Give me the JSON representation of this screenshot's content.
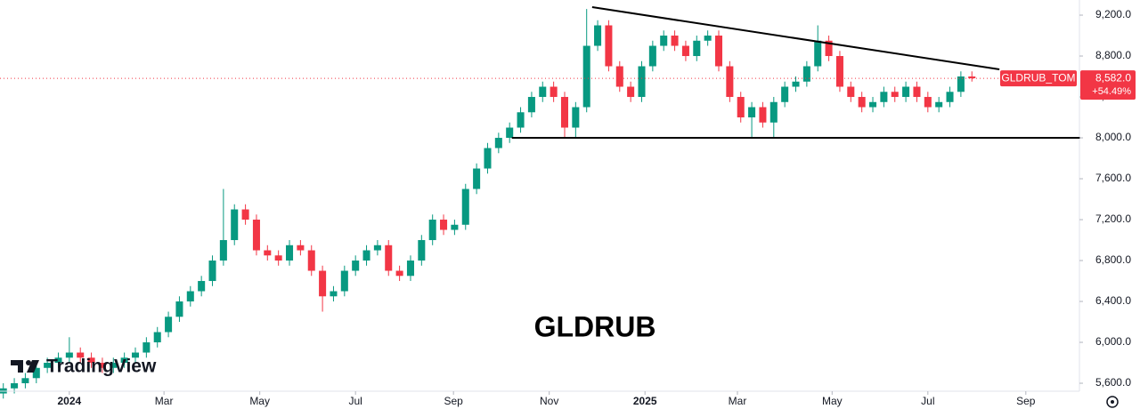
{
  "chart_data": {
    "type": "candlestick",
    "overlay_text": "GLDRUB",
    "watermark": "TradingView",
    "symbol": "GLDRUB_TOM",
    "last_price": {
      "value": 8582,
      "label": "8,582.0"
    },
    "change_label": "+54.49%",
    "up_color": "#089981",
    "down_color": "#f23645",
    "x": [
      -6,
      -5,
      -4,
      -3,
      -2,
      -1,
      0,
      1,
      2,
      3,
      4,
      5,
      6,
      7,
      8,
      9,
      10,
      11,
      12,
      13,
      14,
      15,
      16,
      17,
      18,
      19,
      20,
      21,
      22,
      23,
      24,
      25,
      26,
      27,
      28,
      29,
      30,
      31,
      32,
      33,
      34,
      35,
      36,
      37,
      38,
      39,
      40,
      41,
      42,
      43,
      44,
      45,
      46,
      47,
      48,
      49,
      50,
      51,
      52,
      53,
      54,
      55,
      56,
      57,
      58,
      59,
      60,
      61,
      62,
      63,
      64,
      65,
      66,
      67,
      68,
      69,
      70,
      71,
      72,
      73,
      74,
      75,
      76,
      77,
      78,
      79,
      80,
      81,
      82
    ],
    "open": [
      5500,
      5550,
      5600,
      5650,
      5750,
      5800,
      5850,
      5900,
      5850,
      5800,
      5750,
      5800,
      5850,
      5900,
      6000,
      6100,
      6250,
      6400,
      6500,
      6600,
      6800,
      7000,
      7300,
      7200,
      6900,
      6850,
      6800,
      6950,
      6900,
      6700,
      6450,
      6500,
      6700,
      6800,
      6900,
      6950,
      6700,
      6650,
      6800,
      7000,
      7200,
      7100,
      7150,
      7500,
      7700,
      7900,
      8000,
      8100,
      8250,
      8400,
      8500,
      8400,
      8100,
      8300,
      8900,
      9100,
      8700,
      8500,
      8400,
      8700,
      8900,
      9000,
      8900,
      8800,
      8950,
      9000,
      8700,
      8400,
      8200,
      8300,
      8150,
      8350,
      8500,
      8550,
      8700,
      8950,
      8800,
      8500,
      8400,
      8300,
      8350,
      8450,
      8400,
      8500,
      8400,
      8300,
      8350,
      8450,
      8600
    ],
    "high": [
      5600,
      5650,
      5700,
      5800,
      5850,
      5900,
      6050,
      5950,
      5900,
      5850,
      5850,
      5900,
      5950,
      6050,
      6150,
      6300,
      6450,
      6550,
      6650,
      6850,
      7500,
      7350,
      7350,
      7250,
      6950,
      6900,
      7000,
      7000,
      6950,
      6750,
      6550,
      6750,
      6850,
      6950,
      7000,
      7000,
      6750,
      6850,
      7050,
      7250,
      7250,
      7200,
      7550,
      7750,
      7950,
      8050,
      8150,
      8300,
      8450,
      8550,
      8550,
      8450,
      8350,
      9260,
      9150,
      9150,
      8750,
      8550,
      8750,
      8950,
      9050,
      9050,
      8950,
      9000,
      9050,
      9050,
      8750,
      8450,
      8350,
      8350,
      8400,
      8550,
      8600,
      8750,
      9100,
      9000,
      8850,
      8550,
      8450,
      8400,
      8500,
      8500,
      8550,
      8550,
      8450,
      8400,
      8500,
      8650,
      8650
    ],
    "low": [
      5450,
      5500,
      5550,
      5600,
      5700,
      5750,
      5800,
      5800,
      5750,
      5700,
      5700,
      5750,
      5800,
      5850,
      5950,
      6050,
      6200,
      6350,
      6450,
      6550,
      6750,
      6950,
      7150,
      6850,
      6800,
      6750,
      6750,
      6850,
      6650,
      6300,
      6400,
      6450,
      6650,
      6750,
      6850,
      6650,
      6600,
      6600,
      6750,
      6950,
      7050,
      7050,
      7100,
      7450,
      7650,
      7850,
      7950,
      8050,
      8200,
      8350,
      8350,
      8000,
      8000,
      8250,
      8850,
      8650,
      8450,
      8350,
      8350,
      8650,
      8850,
      8850,
      8750,
      8750,
      8900,
      8650,
      8350,
      8150,
      8000,
      8100,
      8000,
      8300,
      8450,
      8500,
      8650,
      8750,
      8450,
      8350,
      8250,
      8250,
      8300,
      8350,
      8350,
      8350,
      8250,
      8250,
      8300,
      8400,
      8550
    ],
    "close": [
      5550,
      5600,
      5650,
      5750,
      5800,
      5850,
      5900,
      5850,
      5800,
      5750,
      5800,
      5850,
      5900,
      6000,
      6100,
      6250,
      6400,
      6500,
      6600,
      6800,
      7000,
      7300,
      7200,
      6900,
      6850,
      6800,
      6950,
      6900,
      6700,
      6450,
      6500,
      6700,
      6800,
      6900,
      6950,
      6700,
      6650,
      6800,
      7000,
      7200,
      7100,
      7150,
      7500,
      7700,
      7900,
      8000,
      8100,
      8250,
      8400,
      8500,
      8400,
      8100,
      8300,
      8900,
      9100,
      8700,
      8500,
      8400,
      8700,
      8900,
      9000,
      8900,
      8800,
      8950,
      9000,
      8700,
      8400,
      8200,
      8300,
      8150,
      8350,
      8500,
      8550,
      8700,
      8950,
      8800,
      8500,
      8400,
      8300,
      8350,
      8450,
      8400,
      8500,
      8400,
      8300,
      8350,
      8450,
      8600,
      8582
    ],
    "trendlines": [
      {
        "x": [
          47.5,
          84.5
        ],
        "y": [
          9278,
          8670
        ]
      },
      {
        "x": [
          40.2,
          91.8
        ],
        "y": [
          8000,
          8000
        ]
      }
    ],
    "xlim": [
      -6.3,
      90.8
    ],
    "ylim": [
      5522,
      9348
    ],
    "xticks": [
      {
        "value": 0,
        "label": "2024"
      },
      {
        "value": 8.6,
        "label": "Mar"
      },
      {
        "value": 17.3,
        "label": "May"
      },
      {
        "value": 26,
        "label": "Jul"
      },
      {
        "value": 34.9,
        "label": "Sep"
      },
      {
        "value": 43.6,
        "label": "Nov"
      },
      {
        "value": 52.3,
        "label": "2025"
      },
      {
        "value": 60.7,
        "label": "Mar"
      },
      {
        "value": 69.3,
        "label": "May"
      },
      {
        "value": 78,
        "label": "Jul"
      },
      {
        "value": 86.9,
        "label": "Sep"
      }
    ],
    "yticks": [
      {
        "value": 5600,
        "label": "5,600.0"
      },
      {
        "value": 6000,
        "label": "6,000.0"
      },
      {
        "value": 6400,
        "label": "6,400.0"
      },
      {
        "value": 6800,
        "label": "6,800.0"
      },
      {
        "value": 7200,
        "label": "7,200.0"
      },
      {
        "value": 7600,
        "label": "7,600.0"
      },
      {
        "value": 8000,
        "label": "8,000.0"
      },
      {
        "value": 8400,
        "label": "8,400.0"
      },
      {
        "value": 8800,
        "label": "8,800.0"
      },
      {
        "value": 9200,
        "label": "9,200.0"
      }
    ],
    "grid": false
  }
}
